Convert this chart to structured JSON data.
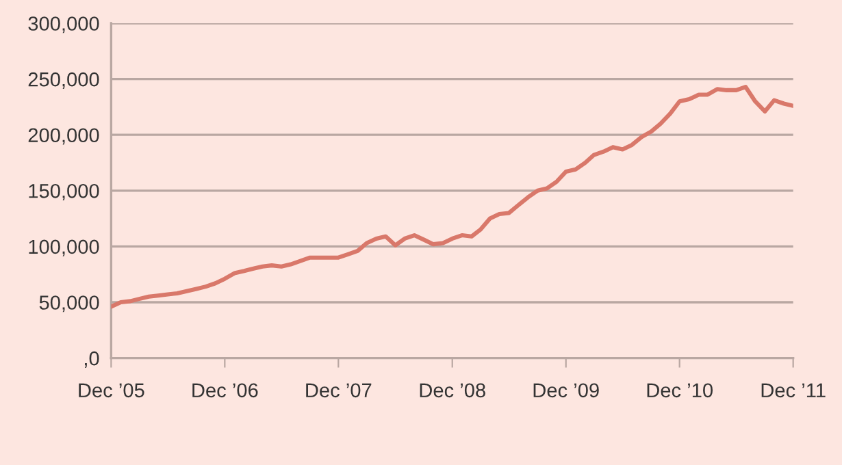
{
  "chart_data": {
    "type": "line",
    "x": [
      "2005-12",
      "2006-01",
      "2006-02",
      "2006-03",
      "2006-04",
      "2006-05",
      "2006-06",
      "2006-07",
      "2006-08",
      "2006-09",
      "2006-10",
      "2006-11",
      "2006-12",
      "2007-01",
      "2007-02",
      "2007-03",
      "2007-04",
      "2007-05",
      "2007-06",
      "2007-07",
      "2007-08",
      "2007-09",
      "2007-10",
      "2007-11",
      "2007-12",
      "2008-01",
      "2008-02",
      "2008-03",
      "2008-04",
      "2008-05",
      "2008-06",
      "2008-07",
      "2008-08",
      "2008-09",
      "2008-10",
      "2008-11",
      "2008-12",
      "2009-01",
      "2009-02",
      "2009-03",
      "2009-04",
      "2009-05",
      "2009-06",
      "2009-07",
      "2009-08",
      "2009-09",
      "2009-10",
      "2009-11",
      "2009-12",
      "2010-01",
      "2010-02",
      "2010-03",
      "2010-04",
      "2010-05",
      "2010-06",
      "2010-07",
      "2010-08",
      "2010-09",
      "2010-10",
      "2010-11",
      "2010-12",
      "2011-01",
      "2011-02",
      "2011-03",
      "2011-04",
      "2011-05",
      "2011-06",
      "2011-07",
      "2011-08",
      "2011-09",
      "2011-10",
      "2011-11",
      "2011-12"
    ],
    "series": [
      {
        "color": "#d9786a",
        "values": [
          46000,
          50000,
          51000,
          53000,
          55000,
          56000,
          57000,
          58000,
          60000,
          62000,
          64000,
          67000,
          71000,
          76000,
          78000,
          80000,
          82000,
          83000,
          82000,
          84000,
          87000,
          90000,
          90000,
          90000,
          90000,
          93000,
          96000,
          103000,
          107000,
          109000,
          101000,
          107000,
          110000,
          106000,
          102000,
          103000,
          107000,
          110000,
          109000,
          115000,
          125000,
          129000,
          130000,
          137000,
          144000,
          150000,
          152000,
          158000,
          167000,
          169000,
          175000,
          182000,
          185000,
          189000,
          187000,
          191000,
          198000,
          203000,
          210000,
          219000,
          230000,
          232000,
          236000,
          236000,
          241000,
          240000,
          240000,
          243000,
          230000,
          221000,
          231000,
          228000,
          226000
        ]
      }
    ],
    "xlim": [
      "2005-12",
      "2011-12"
    ],
    "xticks": [
      {
        "value": "2005-12",
        "label": "Dec ’05"
      },
      {
        "value": "2006-12",
        "label": "Dec ’06"
      },
      {
        "value": "2007-12",
        "label": "Dec ’07"
      },
      {
        "value": "2008-12",
        "label": "Dec ’08"
      },
      {
        "value": "2009-12",
        "label": "Dec ’09"
      },
      {
        "value": "2010-12",
        "label": "Dec ’10"
      },
      {
        "value": "2011-12",
        "label": "Dec ’11"
      }
    ],
    "ylim": [
      0,
      300000
    ],
    "yticks": [
      {
        "value": 0,
        "label": ",0"
      },
      {
        "value": 50000,
        "label": "50,000"
      },
      {
        "value": 100000,
        "label": "100,000"
      },
      {
        "value": 150000,
        "label": "150,000"
      },
      {
        "value": 200000,
        "label": "200,000"
      },
      {
        "value": 250000,
        "label": "250,000"
      },
      {
        "value": 300000,
        "label": "300,000"
      }
    ],
    "grid": "y",
    "marker": "none",
    "line_style": "solid"
  }
}
